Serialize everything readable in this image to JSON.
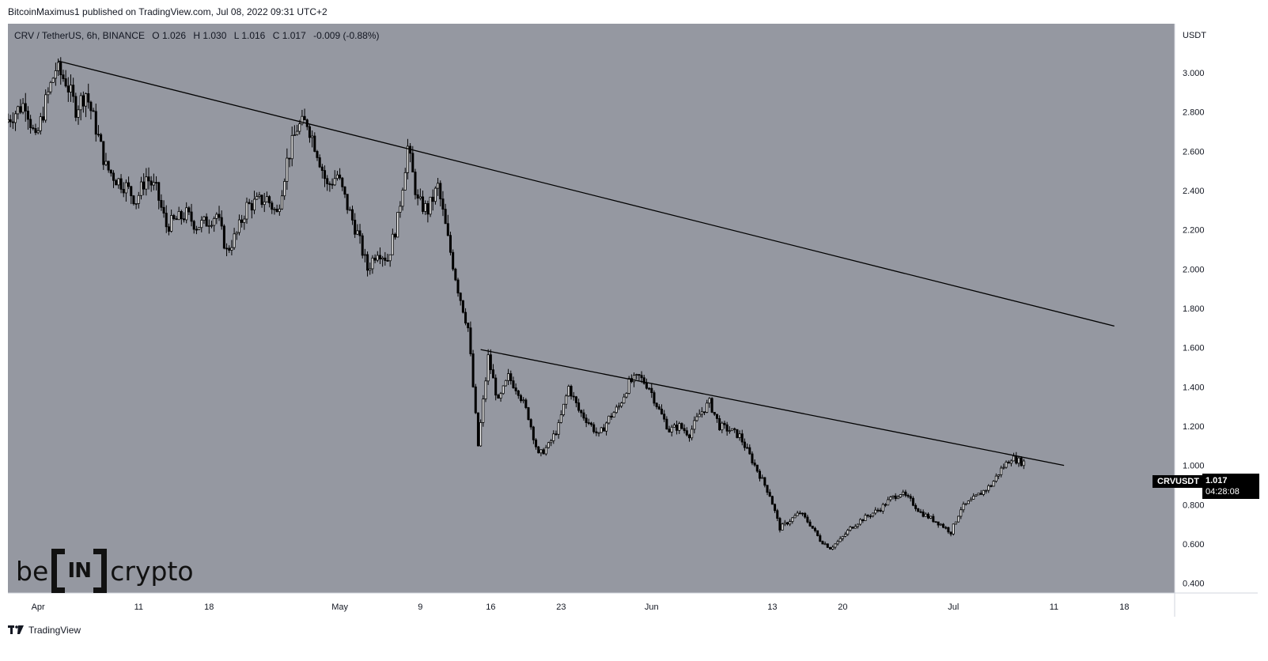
{
  "header": {
    "publisher_line": "BitcoinMaximus1 published on TradingView.com, Jul 08, 2022 09:31 UTC+2"
  },
  "legend": {
    "symbol": "CRV / TetherUS, 6h, BINANCE",
    "o_label": "O",
    "o_value": "1.026",
    "h_label": "H",
    "h_value": "1.030",
    "l_label": "L",
    "l_value": "1.016",
    "c_label": "C",
    "c_value": "1.017",
    "change": "-0.009 (-0.88%)"
  },
  "price_label": {
    "ticker": "CRVUSDT",
    "price": "1.017",
    "countdown": "04:28:08"
  },
  "footer": {
    "brand": "TradingView"
  },
  "watermark": {
    "left": "be",
    "middle": "IN",
    "right": "crypto"
  },
  "colors": {
    "plot_bg": "#9598a1",
    "axis_bg": "#ffffff",
    "candle": "#000000",
    "trendline": "#000000",
    "text": "#131722"
  },
  "chart_data": {
    "type": "candlestick",
    "symbol": "CRV / TetherUS",
    "interval": "6h",
    "exchange": "BINANCE",
    "y_axis_title": "USDT",
    "ylim": [
      0.35,
      3.25
    ],
    "y_ticks": [
      "3.000",
      "2.800",
      "2.600",
      "2.400",
      "2.200",
      "2.000",
      "1.800",
      "1.600",
      "1.400",
      "1.200",
      "1.000",
      "0.800",
      "0.600",
      "0.400"
    ],
    "x_ticks": [
      {
        "label": "Apr",
        "date": "2022-04-01"
      },
      {
        "label": "11",
        "date": "2022-04-11"
      },
      {
        "label": "18",
        "date": "2022-04-18"
      },
      {
        "label": "May",
        "date": "2022-05-01"
      },
      {
        "label": "9",
        "date": "2022-05-09"
      },
      {
        "label": "16",
        "date": "2022-05-16"
      },
      {
        "label": "23",
        "date": "2022-05-23"
      },
      {
        "label": "Jun",
        "date": "2022-06-01"
      },
      {
        "label": "13",
        "date": "2022-06-13"
      },
      {
        "label": "20",
        "date": "2022-06-20"
      },
      {
        "label": "Jul",
        "date": "2022-07-01"
      },
      {
        "label": "11",
        "date": "2022-07-11"
      },
      {
        "label": "18",
        "date": "2022-07-18"
      }
    ],
    "x_range": [
      "2022-03-29",
      "2022-07-23"
    ],
    "price_path": [
      [
        "2022-03-29",
        2.75
      ],
      [
        "2022-03-31",
        2.85
      ],
      [
        "2022-04-01",
        2.65
      ],
      [
        "2022-04-02",
        2.85
      ],
      [
        "2022-04-03",
        3.02
      ],
      [
        "2022-04-04",
        2.96
      ],
      [
        "2022-04-05",
        2.82
      ],
      [
        "2022-04-06",
        2.9
      ],
      [
        "2022-04-07",
        2.72
      ],
      [
        "2022-04-08",
        2.52
      ],
      [
        "2022-04-09",
        2.46
      ],
      [
        "2022-04-10",
        2.42
      ],
      [
        "2022-04-11",
        2.35
      ],
      [
        "2022-04-12",
        2.47
      ],
      [
        "2022-04-13",
        2.4
      ],
      [
        "2022-04-14",
        2.22
      ],
      [
        "2022-04-15",
        2.25
      ],
      [
        "2022-04-16",
        2.28
      ],
      [
        "2022-04-17",
        2.22
      ],
      [
        "2022-04-18",
        2.24
      ],
      [
        "2022-04-19",
        2.28
      ],
      [
        "2022-04-20",
        2.09
      ],
      [
        "2022-04-21",
        2.18
      ],
      [
        "2022-04-22",
        2.32
      ],
      [
        "2022-04-23",
        2.34
      ],
      [
        "2022-04-24",
        2.36
      ],
      [
        "2022-04-25",
        2.28
      ],
      [
        "2022-04-26",
        2.55
      ],
      [
        "2022-04-27",
        2.72
      ],
      [
        "2022-04-28",
        2.75
      ],
      [
        "2022-04-29",
        2.6
      ],
      [
        "2022-04-30",
        2.42
      ],
      [
        "2022-05-01",
        2.48
      ],
      [
        "2022-05-02",
        2.32
      ],
      [
        "2022-05-03",
        2.18
      ],
      [
        "2022-05-04",
        2.0
      ],
      [
        "2022-05-05",
        2.1
      ],
      [
        "2022-05-06",
        2.05
      ],
      [
        "2022-05-07",
        2.25
      ],
      [
        "2022-05-08",
        2.62
      ],
      [
        "2022-05-09",
        2.34
      ],
      [
        "2022-05-10",
        2.3
      ],
      [
        "2022-05-11",
        2.42
      ],
      [
        "2022-05-12",
        2.15
      ],
      [
        "2022-05-13",
        1.9
      ],
      [
        "2022-05-14",
        1.7
      ],
      [
        "2022-05-15",
        1.1
      ],
      [
        "2022-05-16",
        1.55
      ],
      [
        "2022-05-17",
        1.32
      ],
      [
        "2022-05-18",
        1.45
      ],
      [
        "2022-05-19",
        1.38
      ],
      [
        "2022-05-20",
        1.25
      ],
      [
        "2022-05-21",
        1.05
      ],
      [
        "2022-05-22",
        1.1
      ],
      [
        "2022-05-23",
        1.2
      ],
      [
        "2022-05-24",
        1.4
      ],
      [
        "2022-05-25",
        1.28
      ],
      [
        "2022-05-26",
        1.22
      ],
      [
        "2022-05-27",
        1.15
      ],
      [
        "2022-05-28",
        1.24
      ],
      [
        "2022-05-29",
        1.3
      ],
      [
        "2022-05-30",
        1.42
      ],
      [
        "2022-05-31",
        1.45
      ],
      [
        "2022-06-01",
        1.4
      ],
      [
        "2022-06-02",
        1.28
      ],
      [
        "2022-06-03",
        1.18
      ],
      [
        "2022-06-04",
        1.2
      ],
      [
        "2022-06-05",
        1.16
      ],
      [
        "2022-06-06",
        1.26
      ],
      [
        "2022-06-07",
        1.32
      ],
      [
        "2022-06-08",
        1.2
      ],
      [
        "2022-06-09",
        1.18
      ],
      [
        "2022-06-10",
        1.15
      ],
      [
        "2022-06-11",
        1.05
      ],
      [
        "2022-06-12",
        0.95
      ],
      [
        "2022-06-13",
        0.85
      ],
      [
        "2022-06-14",
        0.68
      ],
      [
        "2022-06-15",
        0.72
      ],
      [
        "2022-06-16",
        0.76
      ],
      [
        "2022-06-17",
        0.7
      ],
      [
        "2022-06-18",
        0.62
      ],
      [
        "2022-06-19",
        0.58
      ],
      [
        "2022-06-20",
        0.62
      ],
      [
        "2022-06-21",
        0.68
      ],
      [
        "2022-06-22",
        0.72
      ],
      [
        "2022-06-23",
        0.75
      ],
      [
        "2022-06-24",
        0.78
      ],
      [
        "2022-06-25",
        0.83
      ],
      [
        "2022-06-26",
        0.86
      ],
      [
        "2022-06-27",
        0.82
      ],
      [
        "2022-06-28",
        0.76
      ],
      [
        "2022-06-29",
        0.73
      ],
      [
        "2022-06-30",
        0.7
      ],
      [
        "2022-07-01",
        0.66
      ],
      [
        "2022-07-02",
        0.78
      ],
      [
        "2022-07-03",
        0.82
      ],
      [
        "2022-07-04",
        0.86
      ],
      [
        "2022-07-05",
        0.9
      ],
      [
        "2022-07-06",
        0.98
      ],
      [
        "2022-07-07",
        1.04
      ],
      [
        "2022-07-08",
        1.017
      ]
    ],
    "trendlines": [
      {
        "from": [
          "2022-04-03",
          3.06
        ],
        "to": [
          "2022-07-17",
          1.71
        ]
      },
      {
        "from": [
          "2022-05-15",
          1.59
        ],
        "to": [
          "2022-07-12",
          1.0
        ]
      }
    ],
    "last": {
      "open": 1.026,
      "high": 1.03,
      "low": 1.016,
      "close": 1.017,
      "change": -0.009,
      "change_pct": -0.88
    }
  }
}
